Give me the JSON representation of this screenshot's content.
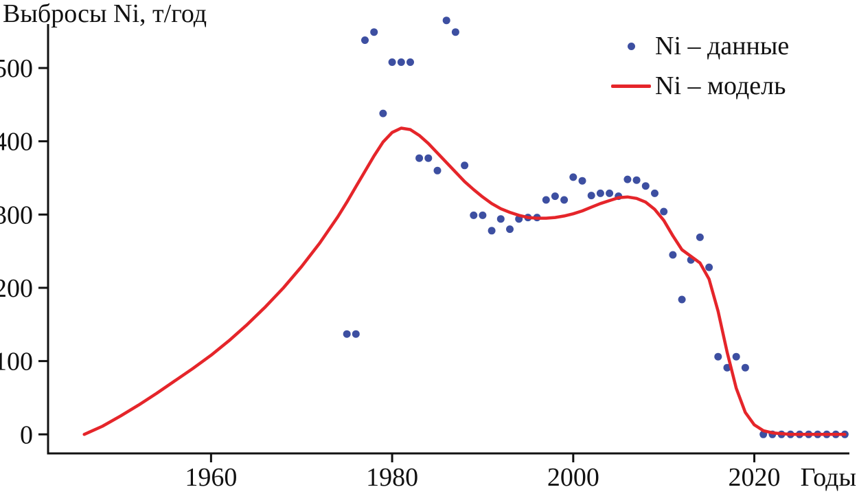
{
  "title": "Выбросы Ni, т/год",
  "x_axis_label": "Годы",
  "legend": [
    {
      "label": "Ni – данные",
      "marker": "dot",
      "color": "#3D4FA1"
    },
    {
      "label": "Ni – модель",
      "marker": "line",
      "color": "#E5252A"
    }
  ],
  "chart_data": {
    "type": "scatter",
    "title": "Выбросы Ni, т/год",
    "xlabel": "Годы",
    "ylabel": "Выбросы Ni, т/год",
    "xlim": [
      1942,
      2030.5
    ],
    "ylim": [
      -26,
      560
    ],
    "x_ticks": [
      1960,
      1980,
      2000,
      2020
    ],
    "y_ticks": [
      0,
      100,
      200,
      300,
      400,
      500
    ],
    "grid": false,
    "legend_position": "top-right",
    "axis_color": "#111111",
    "series": [
      {
        "name": "Ni – данные",
        "type": "scatter",
        "color": "#3D4FA1",
        "points": [
          [
            1975,
            137
          ],
          [
            1976,
            137
          ],
          [
            1977,
            538
          ],
          [
            1978,
            549
          ],
          [
            1979,
            438
          ],
          [
            1980,
            508
          ],
          [
            1981,
            508
          ],
          [
            1982,
            508
          ],
          [
            1983,
            377
          ],
          [
            1984,
            377
          ],
          [
            1985,
            360
          ],
          [
            1986,
            565
          ],
          [
            1987,
            549
          ],
          [
            1988,
            367
          ],
          [
            1989,
            299
          ],
          [
            1990,
            299
          ],
          [
            1991,
            278
          ],
          [
            1992,
            294
          ],
          [
            1993,
            280
          ],
          [
            1994,
            294
          ],
          [
            1995,
            296
          ],
          [
            1996,
            296
          ],
          [
            1997,
            320
          ],
          [
            1998,
            325
          ],
          [
            1999,
            320
          ],
          [
            2000,
            351
          ],
          [
            2001,
            346
          ],
          [
            2002,
            326
          ],
          [
            2003,
            329
          ],
          [
            2004,
            329
          ],
          [
            2005,
            325
          ],
          [
            2006,
            348
          ],
          [
            2007,
            347
          ],
          [
            2008,
            339
          ],
          [
            2009,
            329
          ],
          [
            2010,
            304
          ],
          [
            2011,
            245
          ],
          [
            2012,
            184
          ],
          [
            2013,
            238
          ],
          [
            2014,
            269
          ],
          [
            2015,
            228
          ],
          [
            2016,
            106
          ],
          [
            2017,
            91
          ],
          [
            2018,
            106
          ],
          [
            2019,
            91
          ],
          [
            2021,
            0
          ],
          [
            2022,
            0
          ],
          [
            2023,
            0
          ],
          [
            2024,
            0
          ],
          [
            2025,
            0
          ],
          [
            2026,
            0
          ],
          [
            2027,
            0
          ],
          [
            2028,
            0
          ],
          [
            2029,
            0
          ],
          [
            2030,
            0
          ]
        ]
      },
      {
        "name": "Ni – модель",
        "type": "line",
        "color": "#E5252A",
        "points": [
          [
            1946,
            0
          ],
          [
            1948,
            11
          ],
          [
            1950,
            25
          ],
          [
            1952,
            40
          ],
          [
            1954,
            56
          ],
          [
            1956,
            73
          ],
          [
            1958,
            90
          ],
          [
            1960,
            108
          ],
          [
            1962,
            128
          ],
          [
            1964,
            150
          ],
          [
            1966,
            174
          ],
          [
            1968,
            200
          ],
          [
            1970,
            229
          ],
          [
            1972,
            261
          ],
          [
            1974,
            297
          ],
          [
            1975,
            317
          ],
          [
            1976,
            338
          ],
          [
            1977,
            359
          ],
          [
            1978,
            380
          ],
          [
            1979,
            399
          ],
          [
            1980,
            412
          ],
          [
            1981,
            418
          ],
          [
            1982,
            416
          ],
          [
            1983,
            408
          ],
          [
            1984,
            397
          ],
          [
            1985,
            384
          ],
          [
            1986,
            371
          ],
          [
            1987,
            358
          ],
          [
            1988,
            345
          ],
          [
            1989,
            334
          ],
          [
            1990,
            324
          ],
          [
            1991,
            315
          ],
          [
            1992,
            308
          ],
          [
            1993,
            303
          ],
          [
            1994,
            299
          ],
          [
            1995,
            296
          ],
          [
            1996,
            295
          ],
          [
            1997,
            295
          ],
          [
            1998,
            296
          ],
          [
            1999,
            298
          ],
          [
            2000,
            301
          ],
          [
            2001,
            305
          ],
          [
            2002,
            310
          ],
          [
            2003,
            315
          ],
          [
            2004,
            319
          ],
          [
            2005,
            323
          ],
          [
            2006,
            324
          ],
          [
            2007,
            322
          ],
          [
            2008,
            317
          ],
          [
            2009,
            307
          ],
          [
            2010,
            292
          ],
          [
            2011,
            271
          ],
          [
            2012,
            252
          ],
          [
            2013,
            243
          ],
          [
            2014,
            234
          ],
          [
            2015,
            212
          ],
          [
            2016,
            168
          ],
          [
            2017,
            112
          ],
          [
            2018,
            63
          ],
          [
            2019,
            30
          ],
          [
            2020,
            13
          ],
          [
            2021,
            5
          ],
          [
            2022,
            2
          ],
          [
            2023,
            1
          ],
          [
            2024,
            0
          ],
          [
            2026,
            0
          ],
          [
            2028,
            0
          ],
          [
            2030,
            0
          ]
        ]
      }
    ]
  }
}
